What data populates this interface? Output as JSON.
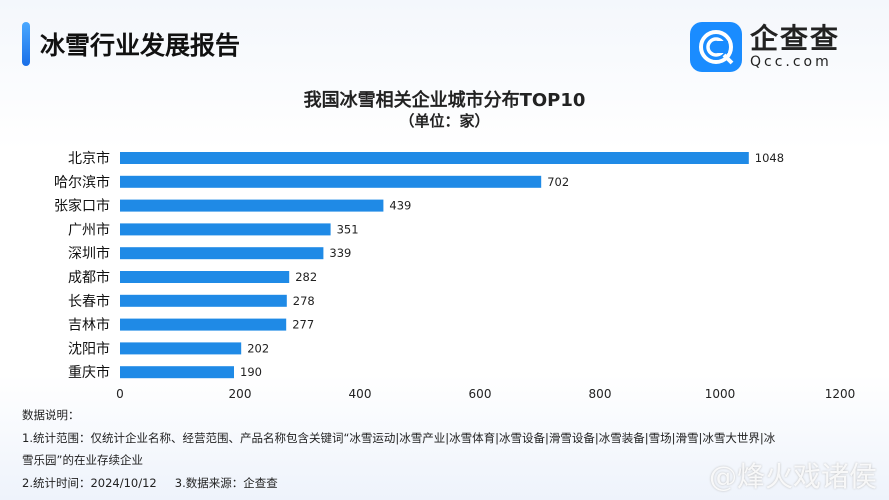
{
  "header": {
    "title": "冰雪行业发展报告"
  },
  "logo": {
    "cn": "企查查",
    "en": "Qcc.com"
  },
  "chart_data": {
    "type": "bar",
    "orientation": "horizontal",
    "title": "我国冰雪相关企业城市分布TOP10",
    "subtitle": "（单位：家）",
    "categories": [
      "北京市",
      "哈尔滨市",
      "张家口市",
      "广州市",
      "深圳市",
      "成都市",
      "长春市",
      "吉林市",
      "沈阳市",
      "重庆市"
    ],
    "values": [
      1048,
      702,
      439,
      351,
      339,
      282,
      278,
      277,
      202,
      190
    ],
    "xlim": [
      0,
      1200
    ],
    "xticks": [
      0,
      200,
      400,
      600,
      800,
      1000,
      1200
    ],
    "grid": false,
    "bar_color": "#1f8ae6"
  },
  "notes": {
    "heading": "数据说明：",
    "line1": "1.统计范围：仅统计企业名称、经营范围、产品名称包含关键词“冰雪运动|冰雪产业|冰雪体育|冰雪设备|滑雪设备|冰雪装备|雪场|滑雪|冰雪大世界|冰",
    "line1b": "雪乐园”的在业存续企业",
    "time": "2.统计时间：2024/10/12",
    "source": "3.数据来源：企查查"
  },
  "watermark": "@烽火戏诸侯"
}
